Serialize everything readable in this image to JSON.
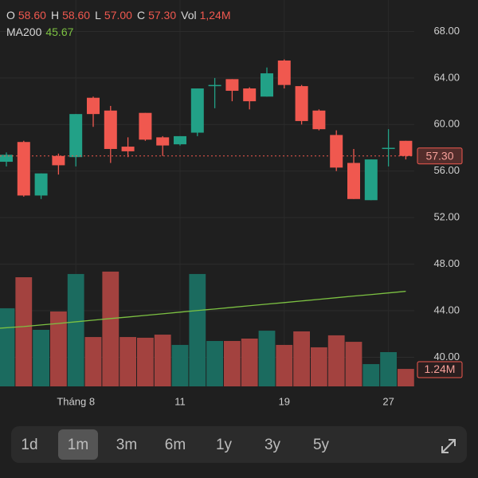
{
  "chart_data": {
    "type": "candlestick",
    "header": {
      "fields": [
        {
          "label": "O",
          "value": "58.60"
        },
        {
          "label": "H",
          "value": "58.60"
        },
        {
          "label": "L",
          "value": "57.00"
        },
        {
          "label": "C",
          "value": "57.30"
        },
        {
          "label": "Vol",
          "value": "1,24M"
        }
      ],
      "ma_label": "MA200",
      "ma_value": "45.67"
    },
    "categories": [
      null,
      null,
      null,
      null,
      "Tháng 8",
      null,
      null,
      null,
      null,
      null,
      "11",
      null,
      null,
      null,
      null,
      null,
      "19",
      null,
      null,
      null,
      null,
      null,
      "27",
      null
    ],
    "open": [
      56.8,
      58.5,
      53.9,
      57.3,
      57.2,
      62.3,
      61.2,
      58.1,
      61.0,
      58.9,
      58.3,
      59.3,
      63.3,
      63.9,
      63.1,
      62.4,
      65.5,
      63.3,
      61.2,
      59.1,
      56.7,
      53.5,
      57.9,
      58.6
    ],
    "high": [
      57.6,
      58.6,
      55.8,
      57.5,
      60.9,
      62.4,
      61.6,
      58.9,
      61.0,
      59.0,
      59.0,
      63.1,
      64.0,
      63.9,
      63.2,
      64.9,
      65.6,
      63.4,
      61.3,
      59.5,
      57.9,
      57.0,
      59.6,
      58.6
    ],
    "low": [
      56.4,
      53.8,
      53.6,
      55.7,
      56.4,
      59.8,
      56.7,
      57.2,
      58.6,
      57.3,
      58.2,
      59.0,
      61.4,
      62.0,
      61.3,
      62.4,
      63.1,
      60.0,
      59.5,
      56.0,
      53.6,
      53.5,
      56.4,
      57.0
    ],
    "close": [
      57.4,
      53.9,
      55.8,
      56.5,
      60.9,
      60.9,
      57.9,
      57.7,
      58.7,
      58.2,
      59.0,
      63.1,
      63.4,
      62.9,
      62.0,
      64.4,
      63.4,
      60.3,
      59.6,
      56.3,
      53.6,
      57.0,
      58.0,
      57.3
    ],
    "volume": [
      5.54,
      7.74,
      4.01,
      5.31,
      7.97,
      3.5,
      8.14,
      3.5,
      3.45,
      3.67,
      2.94,
      7.97,
      3.22,
      3.22,
      3.39,
      3.95,
      2.94,
      3.9,
      2.77,
      3.62,
      3.16,
      1.58,
      2.43,
      1.24
    ],
    "ma200": [
      42.5,
      42.64,
      42.78,
      42.91,
      43.05,
      43.19,
      43.33,
      43.46,
      43.6,
      43.74,
      43.88,
      44.02,
      44.15,
      44.29,
      44.43,
      44.57,
      44.7,
      44.84,
      44.98,
      45.12,
      45.26,
      45.39,
      45.53,
      45.67
    ],
    "ylim": [
      37.5,
      70.7
    ],
    "yticks": [
      {
        "value": 68,
        "label": "68.00"
      },
      {
        "value": 64,
        "label": "64.00"
      },
      {
        "value": 60,
        "label": "60.00"
      },
      {
        "value": 56,
        "label": "56.00"
      },
      {
        "value": 52,
        "label": "52.00"
      },
      {
        "value": 48,
        "label": "48.00"
      },
      {
        "value": 44,
        "label": "44.00"
      },
      {
        "value": 40,
        "label": "40.00"
      }
    ],
    "volume_lim": [
      0,
      27.4
    ],
    "last_price": {
      "value": 57.3,
      "label": "57.30"
    },
    "last_volume": {
      "value": 1.24,
      "label": "1.24M"
    },
    "up_color": "#22a187",
    "down_color": "#f0584f",
    "volume_up_color": "#1b6b5f",
    "volume_down_color": "#a3423f",
    "ma_color": "#7cc142",
    "grid": true
  },
  "toolbar": {
    "timeframes": [
      "1d",
      "1m",
      "3m",
      "6m",
      "1y",
      "3y",
      "5y"
    ],
    "selected": 1
  }
}
